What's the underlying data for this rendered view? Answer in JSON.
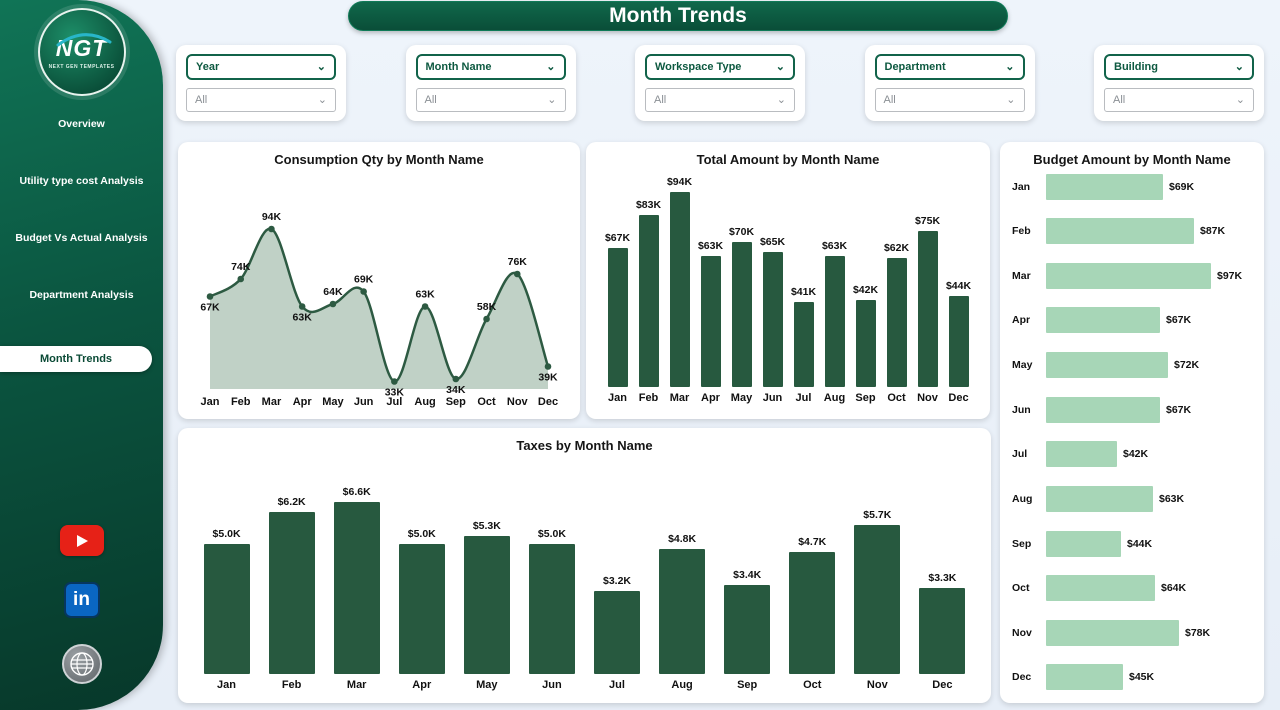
{
  "page": {
    "title": "Month Trends"
  },
  "sidebar": {
    "logo": {
      "text": "NGT",
      "subtext": "NEXT GEN TEMPLATES"
    },
    "items": [
      {
        "label": "Overview",
        "active": false
      },
      {
        "label": "Utility type cost Analysis",
        "active": false
      },
      {
        "label": "Budget Vs Actual Analysis",
        "active": false
      },
      {
        "label": "Department Analysis",
        "active": false
      },
      {
        "label": "Month Trends",
        "active": true
      }
    ],
    "social": {
      "linkedin_label": "in"
    }
  },
  "filters": [
    {
      "label": "Year",
      "value": "All"
    },
    {
      "label": "Month Name",
      "value": "All"
    },
    {
      "label": "Workspace Type",
      "value": "All"
    },
    {
      "label": "Department",
      "value": "All"
    },
    {
      "label": "Building",
      "value": "All"
    }
  ],
  "icons": {
    "chevron_down": "⌄"
  },
  "colors": {
    "sidebar_green": "#0b5540",
    "accent": "#0e5f46",
    "bar_green": "#27593f",
    "light_green_bar": "#a7d6b7",
    "area_fill": "#b5c9bc",
    "line_stroke": "#2d5a42",
    "youtube_red": "#e62117",
    "linkedin_blue": "#0a66c2"
  },
  "chart_data": [
    {
      "type": "area",
      "title": "Consumption Qty by Month Name",
      "categories": [
        "Jan",
        "Feb",
        "Mar",
        "Apr",
        "May",
        "Jun",
        "Jul",
        "Aug",
        "Sep",
        "Oct",
        "Nov",
        "Dec"
      ],
      "values": [
        67,
        74,
        94,
        63,
        64,
        69,
        33,
        63,
        34,
        58,
        76,
        39
      ],
      "labels": [
        "67K",
        "74K",
        "94K",
        "63K",
        "64K",
        "69K",
        "33K",
        "63K",
        "34K",
        "58K",
        "76K",
        "39K"
      ],
      "unit": "K",
      "ylim": [
        30,
        100
      ],
      "grid": false,
      "legend": "none"
    },
    {
      "type": "bar",
      "title": "Total Amount by Month Name",
      "categories": [
        "Jan",
        "Feb",
        "Mar",
        "Apr",
        "May",
        "Jun",
        "Jul",
        "Aug",
        "Sep",
        "Oct",
        "Nov",
        "Dec"
      ],
      "values": [
        67,
        83,
        94,
        63,
        70,
        65,
        41,
        63,
        42,
        62,
        75,
        44
      ],
      "labels": [
        "$67K",
        "$83K",
        "$94K",
        "$63K",
        "$70K",
        "$65K",
        "$41K",
        "$63K",
        "$42K",
        "$62K",
        "$75K",
        "$44K"
      ],
      "unit": "K USD",
      "ylim": [
        0,
        100
      ],
      "grid": false,
      "legend": "none"
    },
    {
      "type": "bar",
      "title": "Taxes by Month Name",
      "categories": [
        "Jan",
        "Feb",
        "Mar",
        "Apr",
        "May",
        "Jun",
        "Jul",
        "Aug",
        "Sep",
        "Oct",
        "Nov",
        "Dec"
      ],
      "values": [
        5.0,
        6.2,
        6.6,
        5.0,
        5.3,
        5.0,
        3.2,
        4.8,
        3.4,
        4.7,
        5.7,
        3.3
      ],
      "labels": [
        "$5.0K",
        "$6.2K",
        "$6.6K",
        "$5.0K",
        "$5.3K",
        "$5.0K",
        "$3.2K",
        "$4.8K",
        "$3.4K",
        "$4.7K",
        "$5.7K",
        "$3.3K"
      ],
      "unit": "K USD",
      "ylim": [
        0,
        7
      ],
      "grid": false,
      "legend": "none"
    },
    {
      "type": "bar-horizontal",
      "title": "Budget Amount by Month Name",
      "categories": [
        "Jan",
        "Feb",
        "Mar",
        "Apr",
        "May",
        "Jun",
        "Jul",
        "Aug",
        "Sep",
        "Oct",
        "Nov",
        "Dec"
      ],
      "values": [
        69,
        87,
        97,
        67,
        72,
        67,
        42,
        63,
        44,
        64,
        78,
        45
      ],
      "labels": [
        "$69K",
        "$87K",
        "$97K",
        "$67K",
        "$72K",
        "$67K",
        "$42K",
        "$63K",
        "$44K",
        "$64K",
        "$78K",
        "$45K"
      ],
      "unit": "K USD",
      "xlim": [
        0,
        100
      ],
      "grid": false,
      "legend": "none"
    }
  ]
}
